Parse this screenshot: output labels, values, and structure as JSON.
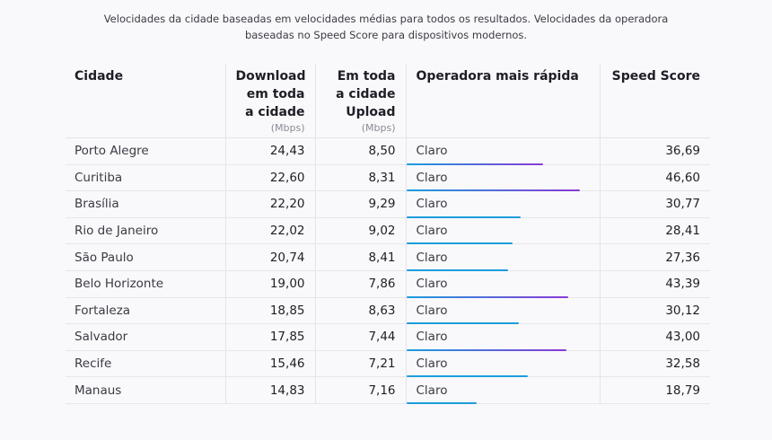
{
  "caption": "Velocidades da cidade baseadas em velocidades médias para todos os resultados. Velocidades da operadora baseadas no Speed Score para dispositivos modernos.",
  "headers": {
    "city": "Cidade",
    "download": "Download em toda a cidade",
    "download_unit": "(Mbps)",
    "upload": "Em toda a cidade Upload",
    "upload_unit": "(Mbps)",
    "operator": "Operadora mais rápida",
    "score": "Speed Score"
  },
  "rows": [
    {
      "city": "Porto Alegre",
      "download": "24,43",
      "upload": "8,50",
      "operator": "Claro",
      "score": "36,69",
      "score_value": 36.69
    },
    {
      "city": "Curitiba",
      "download": "22,60",
      "upload": "8,31",
      "operator": "Claro",
      "score": "46,60",
      "score_value": 46.6
    },
    {
      "city": "Brasília",
      "download": "22,20",
      "upload": "9,29",
      "operator": "Claro",
      "score": "30,77",
      "score_value": 30.77
    },
    {
      "city": "Rio de Janeiro",
      "download": "22,02",
      "upload": "9,02",
      "operator": "Claro",
      "score": "28,41",
      "score_value": 28.41
    },
    {
      "city": "São Paulo",
      "download": "20,74",
      "upload": "8,41",
      "operator": "Claro",
      "score": "27,36",
      "score_value": 27.36
    },
    {
      "city": "Belo Horizonte",
      "download": "19,00",
      "upload": "7,86",
      "operator": "Claro",
      "score": "43,39",
      "score_value": 43.39
    },
    {
      "city": "Fortaleza",
      "download": "18,85",
      "upload": "8,63",
      "operator": "Claro",
      "score": "30,12",
      "score_value": 30.12
    },
    {
      "city": "Salvador",
      "download": "17,85",
      "upload": "7,44",
      "operator": "Claro",
      "score": "43,00",
      "score_value": 43.0
    },
    {
      "city": "Recife",
      "download": "15,46",
      "upload": "7,21",
      "operator": "Claro",
      "score": "32,58",
      "score_value": 32.58
    },
    {
      "city": "Manaus",
      "download": "14,83",
      "upload": "7,16",
      "operator": "Claro",
      "score": "18,79",
      "score_value": 18.79
    }
  ],
  "colors": {
    "bar_blue": "#1c9ddb",
    "bar_purple": "#8a3ad6"
  }
}
